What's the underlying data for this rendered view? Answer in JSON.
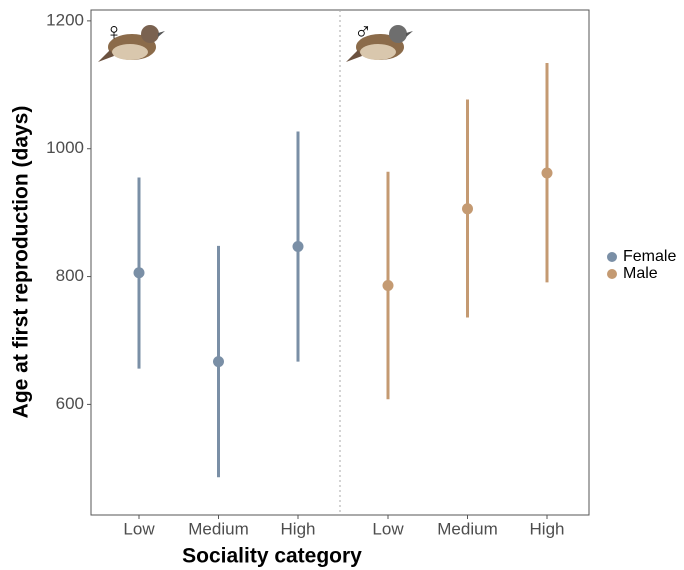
{
  "chart_data": {
    "type": "pointrange",
    "x_label": "Sociality category",
    "y_label": "Age at first reproduction (days)",
    "categories": [
      "Low",
      "Medium",
      "High"
    ],
    "series": [
      {
        "name": "Female",
        "symbol": "♀",
        "color": "#7a8fa6",
        "values": [
          806,
          667,
          847
        ],
        "lower": [
          656,
          486,
          667
        ],
        "upper": [
          955,
          848,
          1027
        ]
      },
      {
        "name": "Male",
        "symbol": "♂",
        "color": "#c49a72",
        "values": [
          786,
          906,
          962
        ],
        "lower": [
          608,
          736,
          791
        ],
        "upper": [
          964,
          1077,
          1134
        ]
      }
    ],
    "ylim": [
      427,
      1217
    ],
    "yticks": [
      600,
      800,
      1000,
      1200
    ],
    "grid": false,
    "legend": "right"
  }
}
